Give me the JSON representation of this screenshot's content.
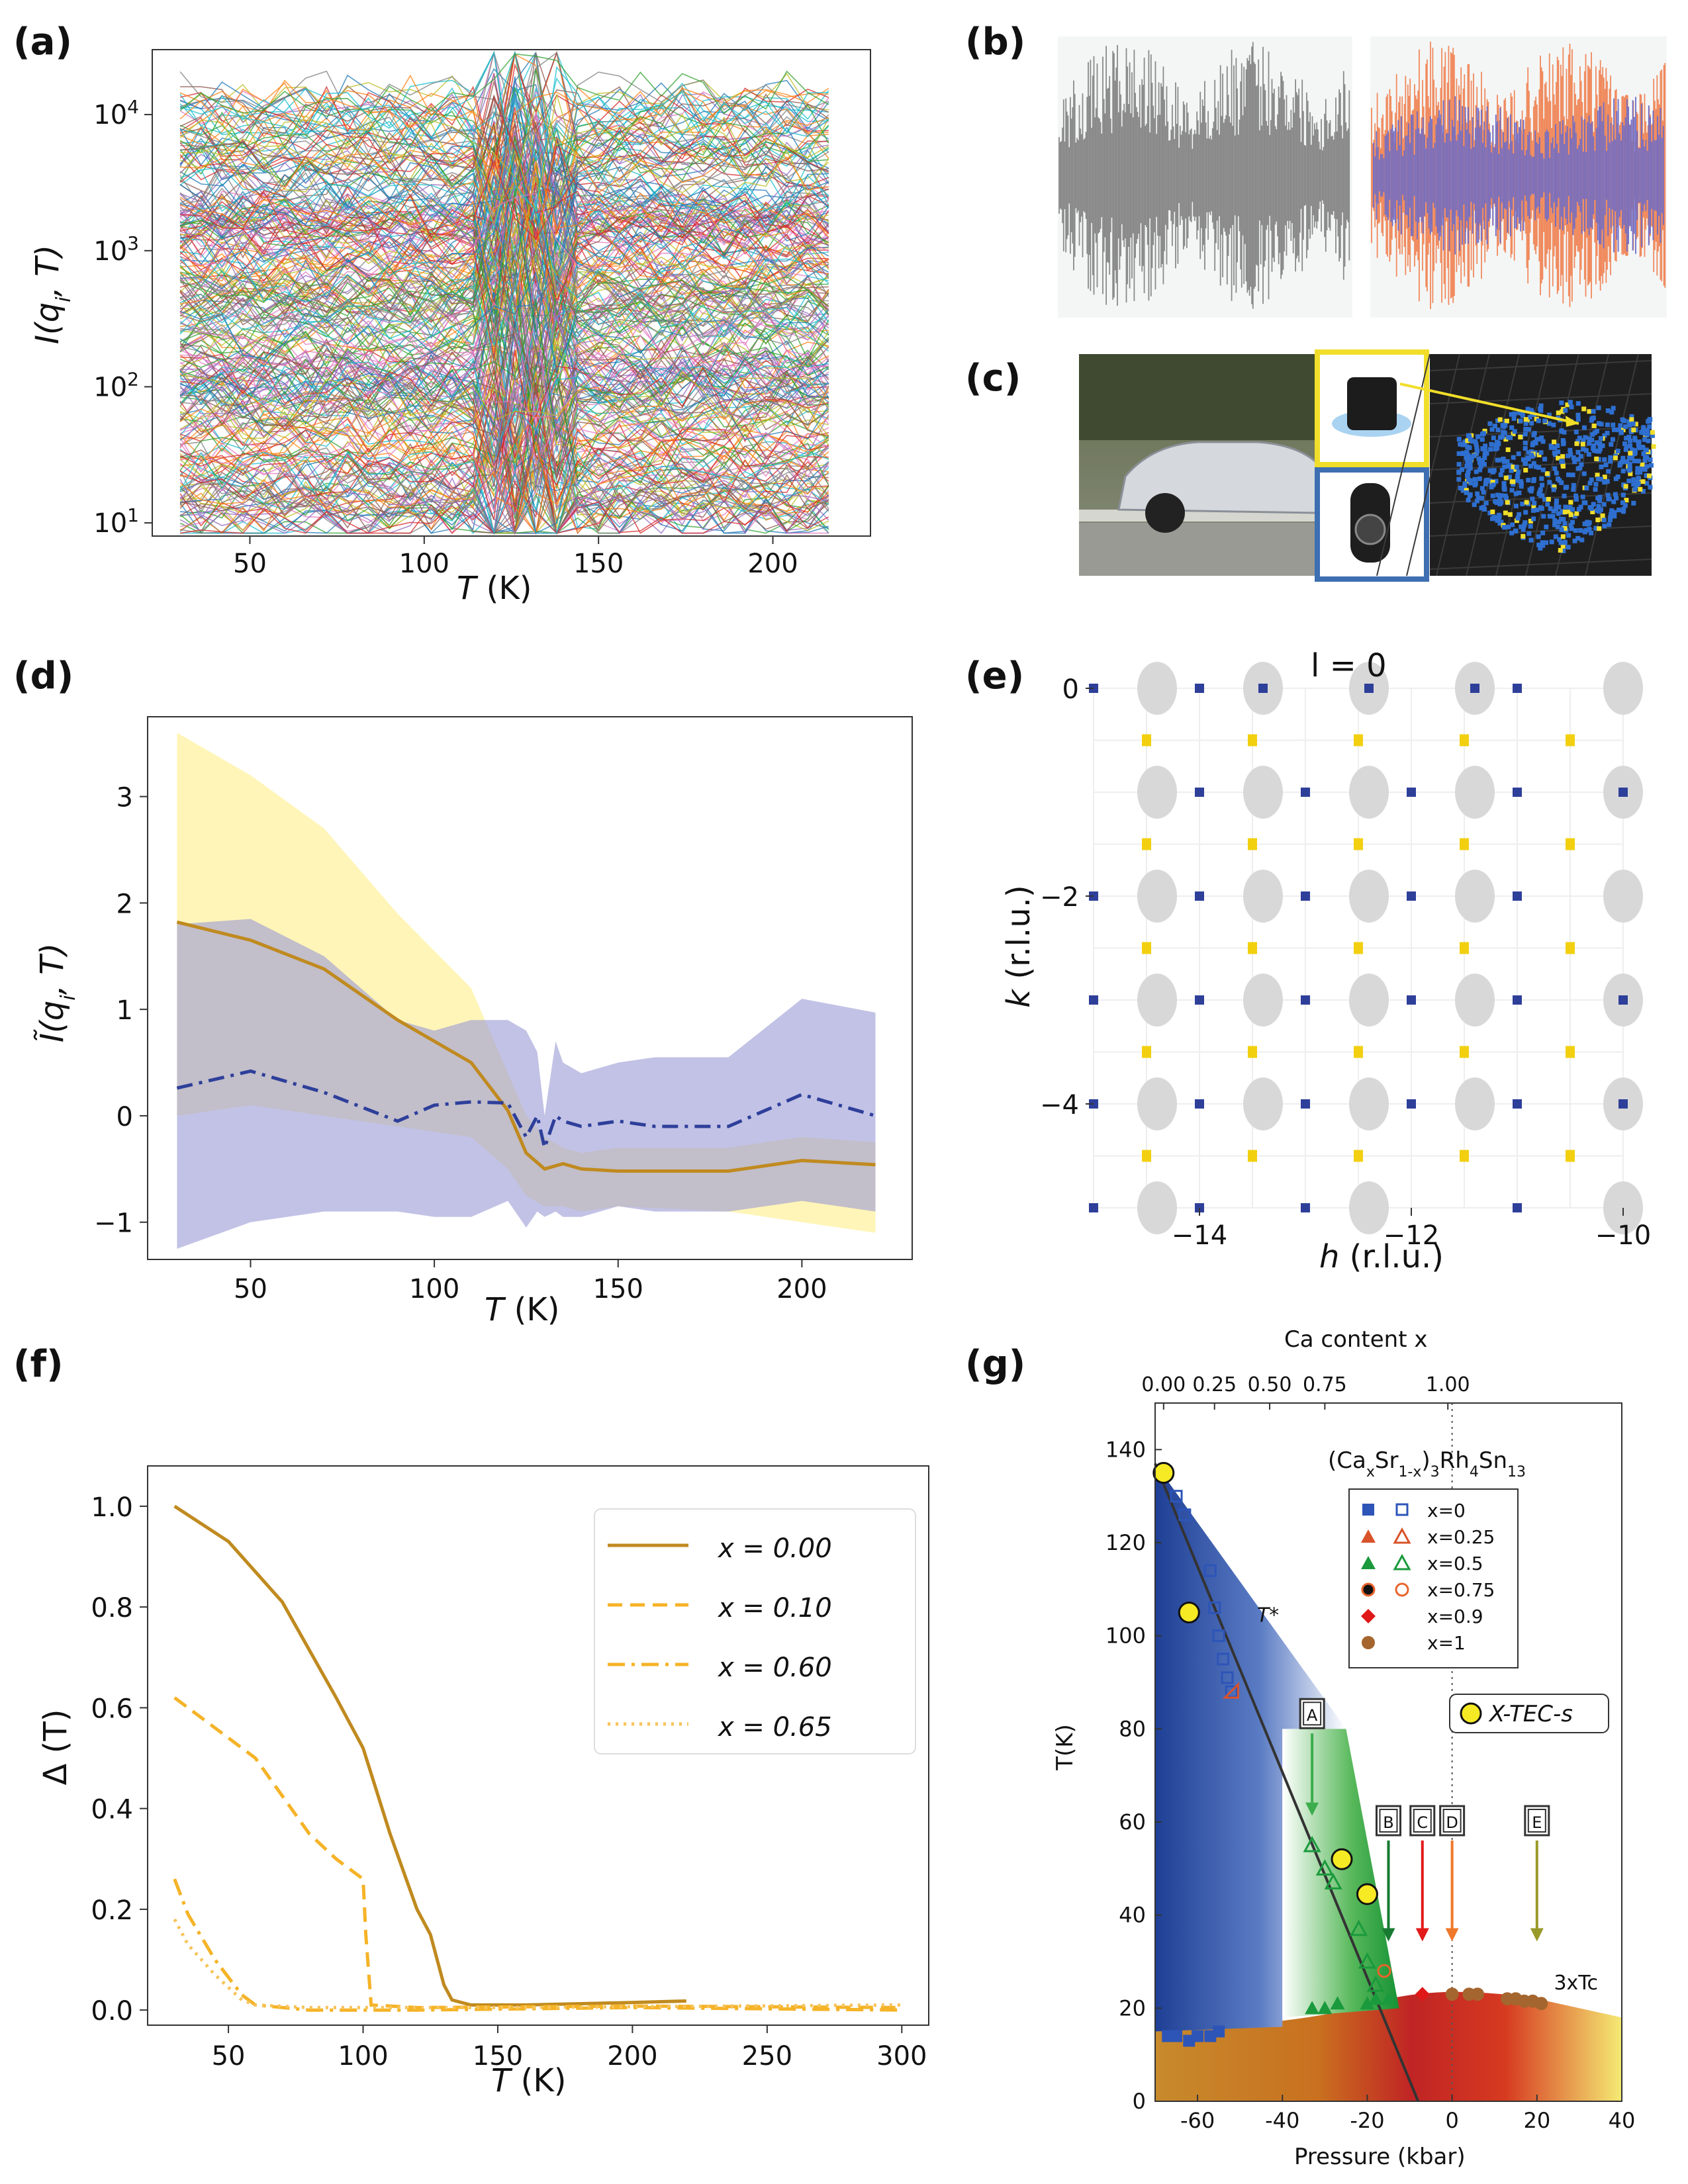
{
  "panel_labels": [
    "(a)",
    "(b)",
    "(c)",
    "(d)",
    "(e)",
    "(f)",
    "(g)"
  ],
  "colors": {
    "gold": "#c08a1f",
    "amber": "#f5b327",
    "navy": "#2e3f9a",
    "fill_yellow": "#fff3a6",
    "fill_purple": "#9999d6",
    "grey": "#d8d8d8",
    "yellow_spot": "#f2d010"
  },
  "chart_data": [
    {
      "id": "a",
      "type": "line",
      "description_visible": false,
      "xlabel": "T (K)",
      "ylabel": "I(q_i, T)",
      "yscale": "log",
      "xlim": [
        22,
        228
      ],
      "ylim": [
        8,
        30000
      ],
      "xticks": [
        50,
        100,
        150,
        200
      ],
      "yticks": [
        "10^1",
        "10^2",
        "10^3",
        "10^4"
      ],
      "ytick_values": [
        10,
        100,
        1000,
        10000
      ],
      "series_count_estimate": "thousands",
      "x_range_of_series": [
        30,
        220
      ]
    },
    {
      "id": "d",
      "type": "line",
      "xlabel": "T (K)",
      "ylabel": "Ĩ(q_i, T)",
      "xlim": [
        22,
        230
      ],
      "ylim": [
        -1.35,
        3.75
      ],
      "xticks": [
        50,
        100,
        150,
        200
      ],
      "yticks": [
        -1,
        0,
        1,
        2,
        3
      ],
      "series": [
        {
          "name": "gold-mean",
          "style": "solid",
          "x": [
            30,
            50,
            70,
            90,
            110,
            120,
            125,
            130,
            135,
            140,
            150,
            180,
            200,
            220
          ],
          "y": [
            1.82,
            1.65,
            1.38,
            0.9,
            0.5,
            0.05,
            -0.35,
            -0.5,
            -0.45,
            -0.5,
            -0.52,
            -0.52,
            -0.42,
            -0.46
          ],
          "band_upper": [
            3.6,
            3.2,
            2.7,
            1.9,
            1.2,
            0.4,
            0.0,
            -0.2,
            -0.3,
            -0.35,
            -0.3,
            -0.3,
            -0.2,
            -0.25
          ],
          "band_lower": [
            0.0,
            0.1,
            0.0,
            -0.1,
            -0.2,
            -0.5,
            -0.75,
            -0.85,
            -0.85,
            -0.9,
            -0.85,
            -0.9,
            -1.0,
            -1.1
          ]
        },
        {
          "name": "blue-mean",
          "style": "dashdot",
          "x": [
            30,
            50,
            70,
            90,
            100,
            110,
            120,
            125,
            128,
            130,
            133,
            135,
            140,
            150,
            160,
            180,
            200,
            220
          ],
          "y": [
            0.26,
            0.42,
            0.22,
            -0.05,
            0.1,
            0.13,
            0.12,
            -0.2,
            0.0,
            -0.3,
            0.0,
            -0.05,
            -0.1,
            -0.05,
            -0.1,
            -0.1,
            0.2,
            0.0
          ],
          "band_upper": [
            1.8,
            1.85,
            1.5,
            0.9,
            0.8,
            0.9,
            0.9,
            0.8,
            0.6,
            0.0,
            0.7,
            0.5,
            0.4,
            0.5,
            0.55,
            0.55,
            1.1,
            0.97
          ],
          "band_lower": [
            -1.25,
            -1.0,
            -0.9,
            -0.9,
            -0.95,
            -0.95,
            -0.8,
            -1.05,
            -0.9,
            -0.95,
            -0.9,
            -0.95,
            -0.95,
            -0.85,
            -0.9,
            -0.9,
            -0.8,
            -0.9
          ]
        }
      ]
    },
    {
      "id": "e",
      "type": "heatmap",
      "title": "l = 0",
      "xlabel": "h  (r.l.u.)",
      "ylabel": "k  (r.l.u.)",
      "xlim": [
        -15,
        -10
      ],
      "ylim": [
        -5,
        0
      ],
      "xticks": [
        -14,
        -12,
        -10
      ],
      "yticks": [
        0,
        -2,
        -4
      ],
      "grey_spots": [
        [
          -14.4,
          0
        ],
        [
          -13.4,
          0
        ],
        [
          -12.4,
          0
        ],
        [
          -11.4,
          0
        ],
        [
          -10,
          0
        ],
        [
          -14.4,
          -1
        ],
        [
          -13.4,
          -1
        ],
        [
          -12.4,
          -1
        ],
        [
          -11.4,
          -1
        ],
        [
          -10,
          -1
        ],
        [
          -14.4,
          -2
        ],
        [
          -13.4,
          -2
        ],
        [
          -12.4,
          -2
        ],
        [
          -11.4,
          -2
        ],
        [
          -10,
          -2
        ],
        [
          -14.4,
          -3
        ],
        [
          -13.4,
          -3
        ],
        [
          -12.4,
          -3
        ],
        [
          -11.4,
          -3
        ],
        [
          -10,
          -3
        ],
        [
          -14.4,
          -4
        ],
        [
          -13.4,
          -4
        ],
        [
          -12.4,
          -4
        ],
        [
          -11.4,
          -4
        ],
        [
          -10,
          -4
        ],
        [
          -14.4,
          -5
        ],
        [
          -12.4,
          -5
        ],
        [
          -10,
          -5
        ]
      ],
      "blue_spots": [
        [
          -15,
          0
        ],
        [
          -14,
          0
        ],
        [
          -13.4,
          0
        ],
        [
          -12.4,
          0
        ],
        [
          -11.4,
          0
        ],
        [
          -11,
          0
        ],
        [
          -14,
          -1
        ],
        [
          -13,
          -1
        ],
        [
          -12,
          -1
        ],
        [
          -11,
          -1
        ],
        [
          -10,
          -1
        ],
        [
          -15,
          -2
        ],
        [
          -14,
          -2
        ],
        [
          -13,
          -2
        ],
        [
          -12,
          -2
        ],
        [
          -11,
          -2
        ],
        [
          -15,
          -3
        ],
        [
          -14,
          -3
        ],
        [
          -13,
          -3
        ],
        [
          -12,
          -3
        ],
        [
          -11,
          -3
        ],
        [
          -10,
          -3
        ],
        [
          -15,
          -4
        ],
        [
          -14,
          -4
        ],
        [
          -13,
          -4
        ],
        [
          -12,
          -4
        ],
        [
          -11,
          -4
        ],
        [
          -10,
          -4
        ],
        [
          -15,
          -5
        ],
        [
          -14,
          -5
        ],
        [
          -13,
          -5
        ],
        [
          -11,
          -5
        ]
      ],
      "yellow_spots": [
        [
          -14.5,
          -0.5
        ],
        [
          -13.5,
          -0.5
        ],
        [
          -12.5,
          -0.5
        ],
        [
          -11.5,
          -0.5
        ],
        [
          -10.5,
          -0.5
        ],
        [
          -14.5,
          -1.5
        ],
        [
          -13.5,
          -1.5
        ],
        [
          -12.5,
          -1.5
        ],
        [
          -11.5,
          -1.5
        ],
        [
          -10.5,
          -1.5
        ],
        [
          -14.5,
          -2.5
        ],
        [
          -13.5,
          -2.5
        ],
        [
          -12.5,
          -2.5
        ],
        [
          -11.5,
          -2.5
        ],
        [
          -10.5,
          -2.5
        ],
        [
          -14.5,
          -3.5
        ],
        [
          -13.5,
          -3.5
        ],
        [
          -12.5,
          -3.5
        ],
        [
          -11.5,
          -3.5
        ],
        [
          -10.5,
          -3.5
        ],
        [
          -14.5,
          -4.5
        ],
        [
          -13.5,
          -4.5
        ],
        [
          -12.5,
          -4.5
        ],
        [
          -11.5,
          -4.5
        ],
        [
          -10.5,
          -4.5
        ]
      ]
    },
    {
      "id": "f",
      "type": "line",
      "xlabel": "T (K)",
      "ylabel": "Δ (T)",
      "xlim": [
        20,
        310
      ],
      "ylim": [
        -0.03,
        1.08
      ],
      "xticks": [
        50,
        100,
        150,
        200,
        250,
        300
      ],
      "yticks": [
        0.0,
        0.2,
        0.4,
        0.6,
        0.8,
        1.0
      ],
      "legend_position": "top-right",
      "series": [
        {
          "name": "x = 0.00",
          "style": "solid",
          "x": [
            30,
            50,
            70,
            90,
            100,
            110,
            120,
            125,
            130,
            133,
            140,
            160,
            200,
            220
          ],
          "y": [
            1.0,
            0.93,
            0.81,
            0.62,
            0.52,
            0.35,
            0.2,
            0.15,
            0.05,
            0.02,
            0.01,
            0.01,
            0.015,
            0.018
          ]
        },
        {
          "name": "x = 0.10",
          "style": "dashed",
          "x": [
            30,
            60,
            80,
            90,
            100,
            101,
            103,
            120,
            200,
            300
          ],
          "y": [
            0.62,
            0.5,
            0.35,
            0.3,
            0.26,
            0.15,
            0.01,
            0.005,
            0.008,
            0.005
          ]
        },
        {
          "name": "x = 0.60",
          "style": "dashdot",
          "x": [
            30,
            35,
            45,
            55,
            60,
            80,
            120,
            200,
            300
          ],
          "y": [
            0.26,
            0.19,
            0.1,
            0.03,
            0.01,
            0.0,
            0.0,
            0.005,
            0.0
          ]
        },
        {
          "name": "x = 0.65",
          "style": "dotted",
          "x": [
            30,
            35,
            45,
            55,
            60,
            80,
            150,
            300
          ],
          "y": [
            0.18,
            0.13,
            0.07,
            0.02,
            0.01,
            0.005,
            0.005,
            0.01
          ]
        }
      ]
    },
    {
      "id": "g",
      "type": "scatter",
      "title": "Ca content x",
      "compound": "(CaxSr1-x)3Rh4Sn13",
      "xlabel": "Pressure (kbar)",
      "ylabel": "T(K)",
      "xlim": [
        -70,
        40
      ],
      "ylim": [
        0,
        150
      ],
      "xticks": [
        -60,
        -40,
        -20,
        0,
        20,
        40
      ],
      "yticks": [
        0,
        20,
        40,
        60,
        80,
        100,
        120,
        140
      ],
      "top_xticks": [
        "0.00",
        "0.25",
        "0.50",
        "0.75",
        "1.00"
      ],
      "top_tick_pressures": [
        -68,
        -56,
        -43,
        -30,
        -1
      ],
      "curve_label_T": "T*",
      "curve_label_Tc": "3xTc",
      "markers": [
        "A",
        "B",
        "C",
        "D",
        "E"
      ],
      "marker_positions": [
        [
          -33,
          72
        ],
        [
          -15,
          45
        ],
        [
          -7,
          45
        ],
        [
          0,
          45
        ],
        [
          20,
          45
        ]
      ],
      "legend": [
        "x=0",
        "x=0.25",
        "x=0.5",
        "x=0.75",
        "x=0.9",
        "x=1"
      ],
      "legend_extra": "X-TEC-s",
      "tstar_line": [
        [
          -70,
          137
        ],
        [
          -8,
          0
        ]
      ],
      "xtec_points": [
        [
          -68,
          135
        ],
        [
          -62,
          105
        ],
        [
          -26,
          52
        ],
        [
          -20,
          44.5
        ]
      ],
      "blue_points": [
        [
          -67,
          14
        ],
        [
          -65,
          14
        ],
        [
          -62,
          13
        ],
        [
          -60,
          14
        ],
        [
          -57,
          14
        ],
        [
          -55,
          15
        ]
      ],
      "blue_open": [
        [
          -65,
          130
        ],
        [
          -63,
          126
        ],
        [
          -57,
          114
        ],
        [
          -56,
          106
        ],
        [
          -55,
          100
        ],
        [
          -54,
          95
        ],
        [
          -53,
          91
        ],
        [
          -52,
          88
        ]
      ],
      "red_tri_open": [
        [
          -52,
          88
        ]
      ],
      "green_filled": [
        [
          -33,
          20
        ],
        [
          -30,
          20
        ],
        [
          -27,
          21
        ],
        [
          -20,
          21
        ],
        [
          -18,
          22
        ],
        [
          -15,
          22
        ]
      ],
      "green_open": [
        [
          -33,
          55
        ],
        [
          -30,
          50
        ],
        [
          -28,
          47
        ],
        [
          -22,
          37
        ],
        [
          -20,
          30
        ],
        [
          -18,
          25
        ]
      ],
      "orange_open": [
        [
          -16,
          28
        ]
      ],
      "red_diamond": [
        [
          -7,
          23
        ]
      ],
      "brown_filled": [
        [
          0,
          23
        ],
        [
          4,
          23
        ],
        [
          6,
          23
        ],
        [
          13,
          22
        ],
        [
          15,
          22
        ],
        [
          17,
          21.5
        ],
        [
          19,
          21.5
        ],
        [
          21,
          21
        ]
      ]
    }
  ],
  "axis_text": {
    "a_xlabel": "T",
    "a_xunit": " (K)",
    "d_xlabel": "T",
    "d_xunit": " (K)",
    "f_xlabel": "T",
    "f_xunit": " (K)",
    "f_ylabel": "Δ (T)",
    "e_xlabel": "h",
    "e_xunit": "  (r.l.u.)",
    "e_ylabel": "k",
    "e_yunit": "  (r.l.u.)"
  }
}
